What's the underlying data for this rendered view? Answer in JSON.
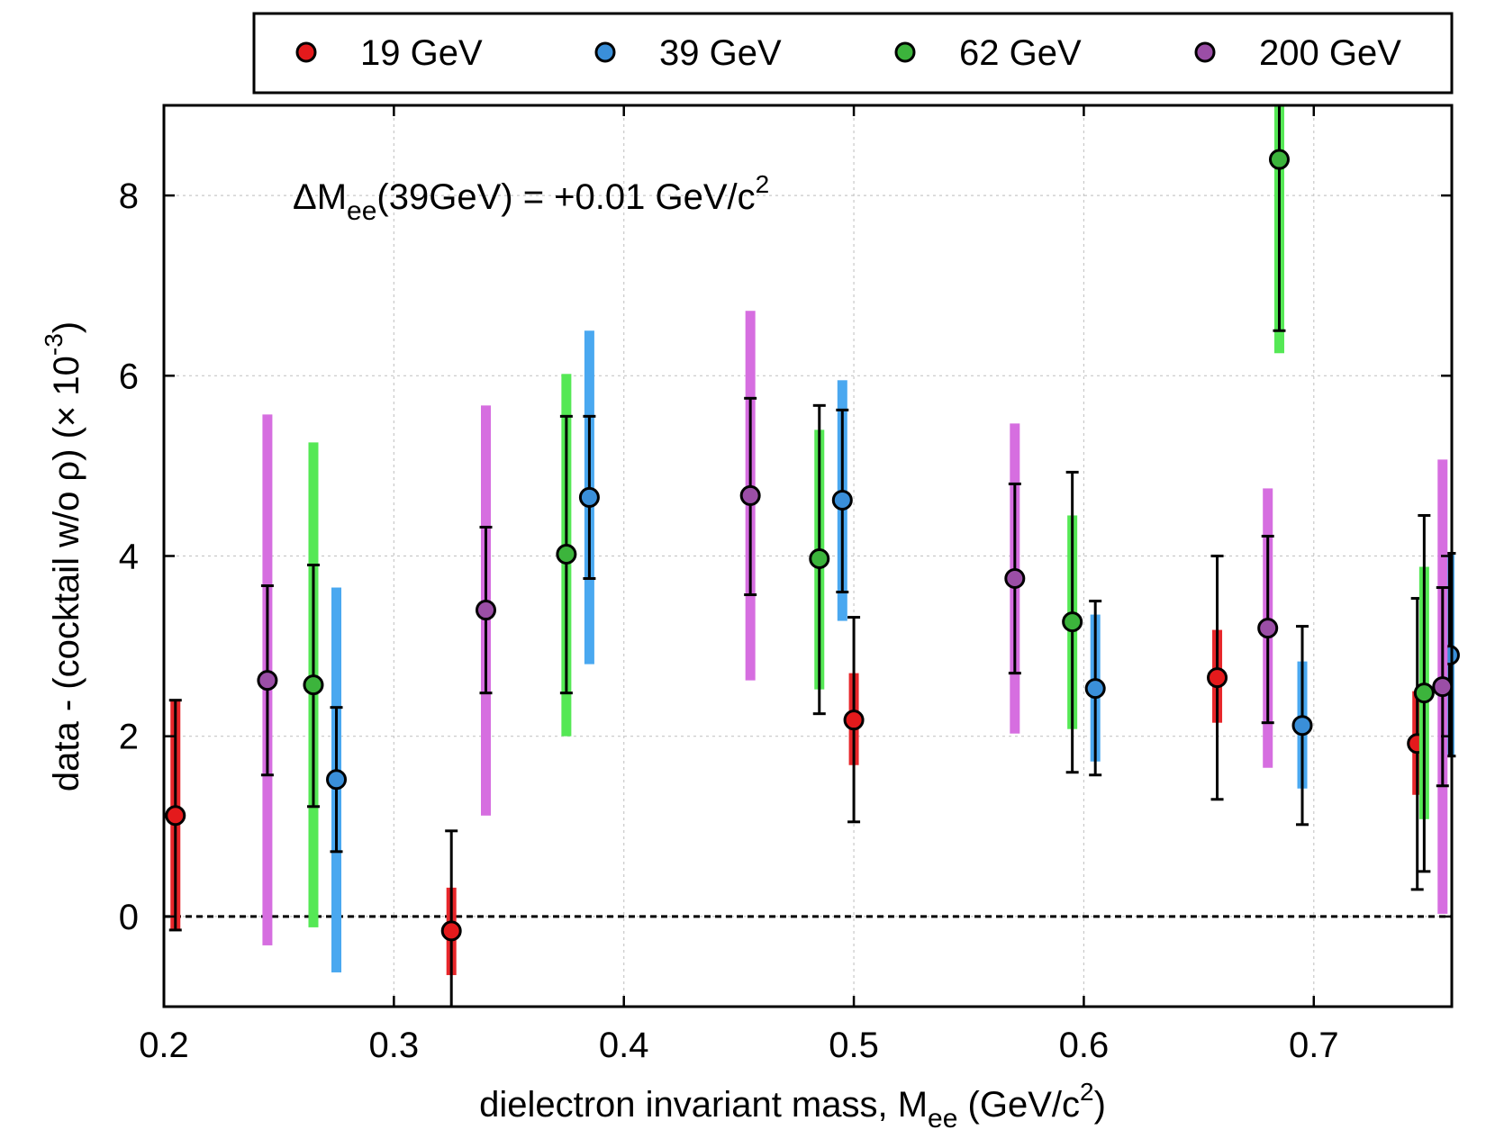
{
  "chart_data": {
    "type": "scatter",
    "xlabel": {
      "main": "dielectron invariant mass, M",
      "sub": "ee",
      "mid": " (GeV/c",
      "sup": "2",
      "end": ")"
    },
    "ylabel": {
      "main": "data - (cocktail w/o ρ) (× 10",
      "sup": "-3",
      "end": ")"
    },
    "annotation": {
      "pre": "ΔM",
      "sub": "ee",
      "mid": "(39GeV) = +0.01 GeV/c",
      "sup": "2"
    },
    "xlim": [
      0.2,
      0.76
    ],
    "ylim": [
      -1,
      9
    ],
    "x_ticks": [
      0.2,
      0.3,
      0.4,
      0.5,
      0.6,
      0.7
    ],
    "x_tick_labels": [
      "0.2",
      "0.3",
      "0.4",
      "0.5",
      "0.6",
      "0.7"
    ],
    "y_ticks": [
      0,
      2,
      4,
      6,
      8
    ],
    "y_tick_labels": [
      "0",
      "2",
      "4",
      "6",
      "8"
    ],
    "grid": true,
    "reference_line_y": 0,
    "legend_position": "top, above plot",
    "series": [
      {
        "name": "19 GeV",
        "color": "#e41a1c",
        "sys_color": "#e8262a",
        "points": [
          {
            "x": 0.205,
            "y": 1.12,
            "stat": [
              -0.15,
              2.4
            ],
            "sys": [
              -0.15,
              2.4
            ]
          },
          {
            "x": 0.325,
            "y": -0.16,
            "stat": [
              -1.0,
              0.95
            ],
            "sys": [
              -0.65,
              0.32
            ]
          },
          {
            "x": 0.5,
            "y": 2.18,
            "stat": [
              1.05,
              3.32
            ],
            "sys": [
              1.68,
              2.7
            ]
          },
          {
            "x": 0.658,
            "y": 2.65,
            "stat": [
              1.3,
              4.0
            ],
            "sys": [
              2.15,
              3.18
            ]
          },
          {
            "x": 0.745,
            "y": 1.92,
            "stat": [
              0.3,
              3.53
            ],
            "sys": [
              1.35,
              2.5
            ]
          }
        ]
      },
      {
        "name": "39 GeV",
        "color": "#3a8fd9",
        "sys_color": "#4aa8f0",
        "points": [
          {
            "x": 0.275,
            "y": 1.52,
            "stat": [
              0.72,
              2.32
            ],
            "sys": [
              -0.62,
              3.65
            ]
          },
          {
            "x": 0.385,
            "y": 4.65,
            "stat": [
              3.75,
              5.55
            ],
            "sys": [
              2.8,
              6.5
            ]
          },
          {
            "x": 0.495,
            "y": 4.62,
            "stat": [
              3.6,
              5.62
            ],
            "sys": [
              3.28,
              5.95
            ]
          },
          {
            "x": 0.605,
            "y": 2.53,
            "stat": [
              1.57,
              3.5
            ],
            "sys": [
              1.72,
              3.35
            ]
          },
          {
            "x": 0.695,
            "y": 2.12,
            "stat": [
              1.02,
              3.22
            ],
            "sys": [
              1.42,
              2.83
            ]
          },
          {
            "x": 0.759,
            "y": 2.9,
            "stat": [
              1.78,
              4.03
            ],
            "sys": [
              1.78,
              4.03
            ]
          }
        ]
      },
      {
        "name": "62 GeV",
        "color": "#3cb43c",
        "sys_color": "#55e855",
        "points": [
          {
            "x": 0.265,
            "y": 2.57,
            "stat": [
              1.22,
              3.9
            ],
            "sys": [
              -0.12,
              5.26
            ]
          },
          {
            "x": 0.375,
            "y": 4.02,
            "stat": [
              2.48,
              5.55
            ],
            "sys": [
              2.0,
              6.02
            ]
          },
          {
            "x": 0.485,
            "y": 3.97,
            "stat": [
              2.25,
              5.67
            ],
            "sys": [
              2.52,
              5.4
            ]
          },
          {
            "x": 0.595,
            "y": 3.27,
            "stat": [
              1.6,
              4.93
            ],
            "sys": [
              2.08,
              4.45
            ]
          },
          {
            "x": 0.685,
            "y": 8.4,
            "stat": [
              6.5,
              9.0
            ],
            "sys": [
              6.25,
              9.0
            ]
          },
          {
            "x": 0.748,
            "y": 2.48,
            "stat": [
              0.5,
              4.45
            ],
            "sys": [
              1.08,
              3.88
            ]
          }
        ]
      },
      {
        "name": "200 GeV",
        "color": "#9b4ea6",
        "sys_color": "#d66ee0",
        "points": [
          {
            "x": 0.245,
            "y": 2.62,
            "stat": [
              1.57,
              3.67
            ],
            "sys": [
              -0.32,
              5.57
            ]
          },
          {
            "x": 0.34,
            "y": 3.4,
            "stat": [
              2.48,
              4.32
            ],
            "sys": [
              1.12,
              5.67
            ]
          },
          {
            "x": 0.455,
            "y": 4.67,
            "stat": [
              3.57,
              5.75
            ],
            "sys": [
              2.62,
              6.72
            ]
          },
          {
            "x": 0.57,
            "y": 3.75,
            "stat": [
              2.7,
              4.8
            ],
            "sys": [
              2.03,
              5.47
            ]
          },
          {
            "x": 0.68,
            "y": 3.2,
            "stat": [
              2.15,
              4.22
            ],
            "sys": [
              1.65,
              4.75
            ]
          },
          {
            "x": 0.756,
            "y": 2.55,
            "stat": [
              1.45,
              3.65
            ],
            "sys": [
              0.03,
              5.07
            ]
          }
        ]
      }
    ]
  }
}
